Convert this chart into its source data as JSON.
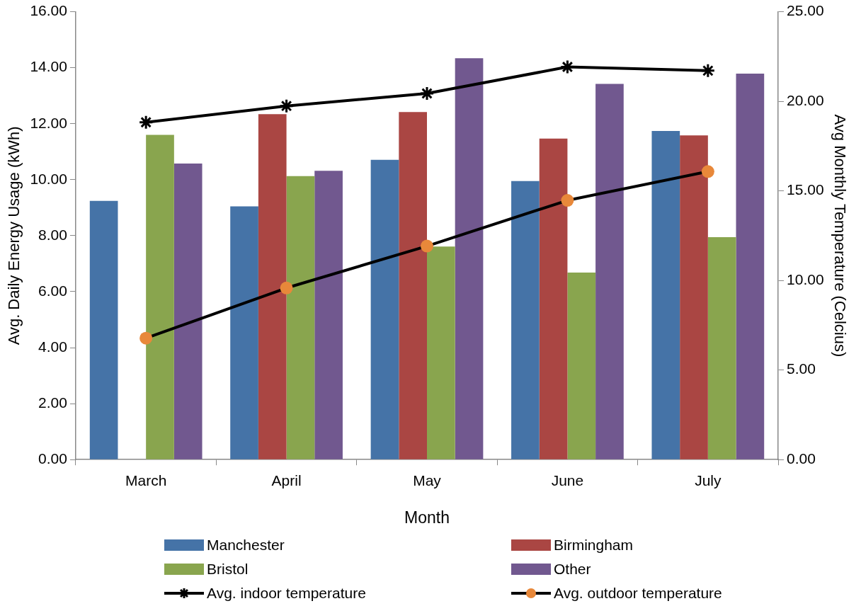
{
  "chart_data": {
    "type": "bar",
    "xlabel": "Month",
    "ylabel": "Avg. Daily Energy Usage (kWh)",
    "y2label": "Avg Monthly Temperature (Celcius)",
    "categories": [
      "March",
      "April",
      "May",
      "June",
      "July"
    ],
    "series": [
      {
        "name": "Manchester",
        "color": "#4573a7",
        "values": [
          9.24,
          9.05,
          10.71,
          9.95,
          11.74
        ]
      },
      {
        "name": "Birmingham",
        "color": "#aa4643",
        "values": [
          null,
          12.34,
          12.42,
          11.47,
          11.58
        ]
      },
      {
        "name": "Bristol",
        "color": "#89a54e",
        "values": [
          11.6,
          10.13,
          7.61,
          6.68,
          7.95
        ]
      },
      {
        "name": "Other",
        "color": "#71588f",
        "values": [
          10.58,
          10.32,
          14.34,
          13.42,
          13.79
        ]
      },
      {
        "name": "Avg. indoor temperature",
        "type": "line",
        "axis": "y2",
        "marker": "cross",
        "color": "#000000",
        "values": [
          18.83,
          19.74,
          20.44,
          21.92,
          21.71
        ]
      },
      {
        "name": "Avg. outdoor temperature",
        "type": "line",
        "axis": "y2",
        "marker": "circle",
        "color": "#000000",
        "colors": [
          "#e8883a",
          "#e8883a",
          "#e8883a",
          "#e8883a",
          "#e8883a"
        ],
        "values": [
          6.78,
          9.58,
          11.92,
          14.47,
          16.08
        ]
      }
    ],
    "ylim": [
      0,
      16
    ],
    "yticks": [
      {
        "value": 0,
        "label": "0.00"
      },
      {
        "value": 2,
        "label": "2.00"
      },
      {
        "value": 4,
        "label": "4.00"
      },
      {
        "value": 6,
        "label": "6.00"
      },
      {
        "value": 8,
        "label": "8.00"
      },
      {
        "value": 10,
        "label": "10.00"
      },
      {
        "value": 12,
        "label": "12.00"
      },
      {
        "value": 14,
        "label": "14.00"
      },
      {
        "value": 16,
        "label": "16.00"
      }
    ],
    "y2lim": [
      0,
      25
    ],
    "y2ticks": [
      {
        "value": 0,
        "label": "0.00"
      },
      {
        "value": 5,
        "label": "5.00"
      },
      {
        "value": 10,
        "label": "10.00"
      },
      {
        "value": 15,
        "label": "15.00"
      },
      {
        "value": 20,
        "label": "20.00"
      },
      {
        "value": 25,
        "label": "25.00"
      }
    ],
    "grid": false,
    "legend": "bottom"
  }
}
